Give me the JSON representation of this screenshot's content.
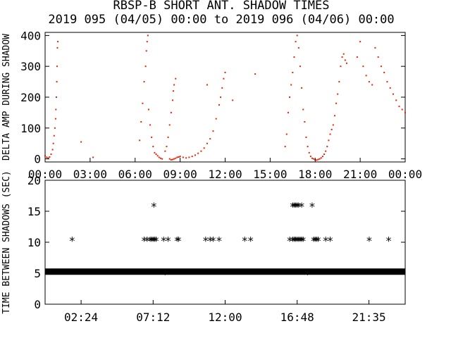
{
  "title": "RBSP-B SHORT ANT. SHADOW TIMES",
  "subtitle": "2019 095 (04/05) 00:00 to 2019 096 (04/06) 00:00",
  "colors": {
    "top_points": "#ee2200",
    "bottom_points": "#000000",
    "axes": "#000000",
    "background": "#ffffff"
  },
  "chart_data": [
    {
      "type": "scatter",
      "ylabel": "DELTA AMP DURING SHADOW",
      "ylim": [
        -10,
        410
      ],
      "xlim": [
        0,
        24
      ],
      "x_unit": "hours",
      "yticks": [
        0,
        100,
        200,
        300,
        400
      ],
      "xtick_values": [
        0,
        3,
        6,
        9,
        12,
        15,
        18,
        21,
        24
      ],
      "xtick_labels": [
        "00:00",
        "03:00",
        "06:00",
        "09:00",
        "12:00",
        "15:00",
        "18:00",
        "21:00",
        "00:00"
      ],
      "series": [
        {
          "points": [
            [
              0.0,
              10
            ],
            [
              0.1,
              5
            ],
            [
              0.2,
              3
            ],
            [
              0.3,
              6
            ],
            [
              0.4,
              15
            ],
            [
              0.5,
              30
            ],
            [
              0.55,
              50
            ],
            [
              0.6,
              75
            ],
            [
              0.65,
              100
            ],
            [
              0.7,
              130
            ],
            [
              0.72,
              160
            ],
            [
              0.75,
              200
            ],
            [
              0.78,
              250
            ],
            [
              0.8,
              300
            ],
            [
              0.82,
              360
            ],
            [
              0.85,
              380
            ],
            [
              2.4,
              55
            ],
            [
              3.2,
              5
            ],
            [
              6.3,
              60
            ],
            [
              6.4,
              120
            ],
            [
              6.5,
              180
            ],
            [
              6.6,
              250
            ],
            [
              6.7,
              300
            ],
            [
              6.75,
              350
            ],
            [
              6.8,
              380
            ],
            [
              6.85,
              400
            ],
            [
              6.9,
              160
            ],
            [
              7.0,
              110
            ],
            [
              7.1,
              70
            ],
            [
              7.2,
              40
            ],
            [
              7.3,
              20
            ],
            [
              7.4,
              15
            ],
            [
              7.5,
              10
            ],
            [
              7.6,
              5
            ],
            [
              7.7,
              2
            ],
            [
              7.8,
              0
            ],
            [
              8.0,
              25
            ],
            [
              8.1,
              40
            ],
            [
              8.2,
              70
            ],
            [
              8.3,
              110
            ],
            [
              8.4,
              150
            ],
            [
              8.5,
              190
            ],
            [
              8.55,
              220
            ],
            [
              8.6,
              240
            ],
            [
              8.7,
              260
            ],
            [
              8.3,
              0
            ],
            [
              8.4,
              -3
            ],
            [
              8.5,
              -2
            ],
            [
              8.6,
              0
            ],
            [
              8.7,
              2
            ],
            [
              8.8,
              5
            ],
            [
              8.9,
              6
            ],
            [
              9.0,
              8
            ],
            [
              9.2,
              5
            ],
            [
              9.4,
              3
            ],
            [
              9.6,
              5
            ],
            [
              9.8,
              8
            ],
            [
              10.0,
              12
            ],
            [
              10.2,
              18
            ],
            [
              10.4,
              25
            ],
            [
              10.6,
              35
            ],
            [
              10.8,
              50
            ],
            [
              11.0,
              65
            ],
            [
              11.2,
              90
            ],
            [
              11.4,
              130
            ],
            [
              11.6,
              175
            ],
            [
              11.7,
              200
            ],
            [
              11.8,
              230
            ],
            [
              11.9,
              260
            ],
            [
              12.0,
              280
            ],
            [
              14.0,
              275
            ],
            [
              16.0,
              40
            ],
            [
              16.1,
              80
            ],
            [
              16.2,
              150
            ],
            [
              16.3,
              200
            ],
            [
              16.4,
              240
            ],
            [
              16.5,
              280
            ],
            [
              16.6,
              330
            ],
            [
              16.7,
              380
            ],
            [
              16.8,
              400
            ],
            [
              16.9,
              360
            ],
            [
              17.0,
              300
            ],
            [
              17.1,
              230
            ],
            [
              17.2,
              160
            ],
            [
              17.3,
              120
            ],
            [
              17.4,
              70
            ],
            [
              17.5,
              40
            ],
            [
              17.6,
              20
            ],
            [
              17.7,
              8
            ],
            [
              17.8,
              2
            ],
            [
              17.9,
              0
            ],
            [
              18.0,
              -3
            ],
            [
              18.1,
              -4
            ],
            [
              18.2,
              -2
            ],
            [
              18.3,
              0
            ],
            [
              18.4,
              3
            ],
            [
              18.5,
              8
            ],
            [
              18.6,
              15
            ],
            [
              18.7,
              25
            ],
            [
              18.8,
              40
            ],
            [
              18.9,
              60
            ],
            [
              19.0,
              80
            ],
            [
              19.1,
              95
            ],
            [
              19.2,
              110
            ],
            [
              19.3,
              140
            ],
            [
              19.4,
              180
            ],
            [
              19.5,
              210
            ],
            [
              19.6,
              250
            ],
            [
              19.7,
              300
            ],
            [
              19.8,
              330
            ],
            [
              19.9,
              340
            ],
            [
              20.0,
              320
            ],
            [
              20.1,
              310
            ],
            [
              20.8,
              330
            ],
            [
              21.0,
              380
            ],
            [
              21.2,
              300
            ],
            [
              21.4,
              270
            ],
            [
              21.6,
              250
            ],
            [
              21.8,
              240
            ],
            [
              22.0,
              360
            ],
            [
              22.2,
              330
            ],
            [
              22.4,
              300
            ],
            [
              22.6,
              280
            ],
            [
              22.8,
              250
            ],
            [
              23.0,
              230
            ],
            [
              23.2,
              210
            ],
            [
              23.4,
              190
            ],
            [
              23.6,
              170
            ],
            [
              23.8,
              160
            ],
            [
              24.0,
              150
            ],
            [
              10.8,
              240
            ],
            [
              12.5,
              190
            ]
          ]
        }
      ]
    },
    {
      "type": "scatter",
      "ylabel": "TIME BETWEEN SHADOWS (SEC)",
      "ylim": [
        0,
        20
      ],
      "xlim": [
        0,
        24
      ],
      "x_unit": "hours",
      "yticks": [
        0,
        5,
        10,
        15,
        20
      ],
      "xtick_values": [
        2.4,
        7.2,
        12.0,
        16.8,
        21.5833
      ],
      "xtick_labels": [
        "02:24",
        "07:12",
        "12:00",
        "16:48",
        "21:35"
      ],
      "baseline": {
        "y": 5.25,
        "x_start": 0,
        "x_end": 24
      },
      "series": [
        {
          "points": [
            [
              1.8,
              10.5
            ],
            [
              6.6,
              10.5
            ],
            [
              6.8,
              10.5
            ],
            [
              7.0,
              10.5
            ],
            [
              7.1,
              10.5
            ],
            [
              7.2,
              10.5
            ],
            [
              7.3,
              10.5
            ],
            [
              7.4,
              10.5
            ],
            [
              7.25,
              16
            ],
            [
              7.9,
              10.5
            ],
            [
              8.2,
              10.5
            ],
            [
              8.8,
              10.5
            ],
            [
              8.9,
              10.5
            ],
            [
              10.7,
              10.5
            ],
            [
              11.0,
              10.5
            ],
            [
              11.2,
              10.5
            ],
            [
              11.6,
              10.5
            ],
            [
              13.3,
              10.5
            ],
            [
              13.7,
              10.5
            ],
            [
              16.3,
              10.5
            ],
            [
              16.5,
              10.5
            ],
            [
              16.6,
              10.5
            ],
            [
              16.7,
              10.5
            ],
            [
              16.8,
              10.5
            ],
            [
              16.9,
              10.5
            ],
            [
              17.0,
              10.5
            ],
            [
              17.1,
              10.5
            ],
            [
              17.2,
              10.5
            ],
            [
              16.5,
              16
            ],
            [
              16.6,
              16
            ],
            [
              16.7,
              16
            ],
            [
              16.8,
              16
            ],
            [
              16.9,
              16
            ],
            [
              17.1,
              16
            ],
            [
              17.8,
              16
            ],
            [
              17.9,
              10.5
            ],
            [
              18.0,
              10.5
            ],
            [
              18.1,
              10.5
            ],
            [
              18.2,
              10.5
            ],
            [
              18.7,
              10.5
            ],
            [
              19.0,
              10.5
            ],
            [
              21.6,
              10.5
            ],
            [
              22.9,
              10.5
            ],
            [
              17.5,
              5.1
            ],
            [
              8.0,
              5.1
            ]
          ]
        }
      ]
    }
  ]
}
